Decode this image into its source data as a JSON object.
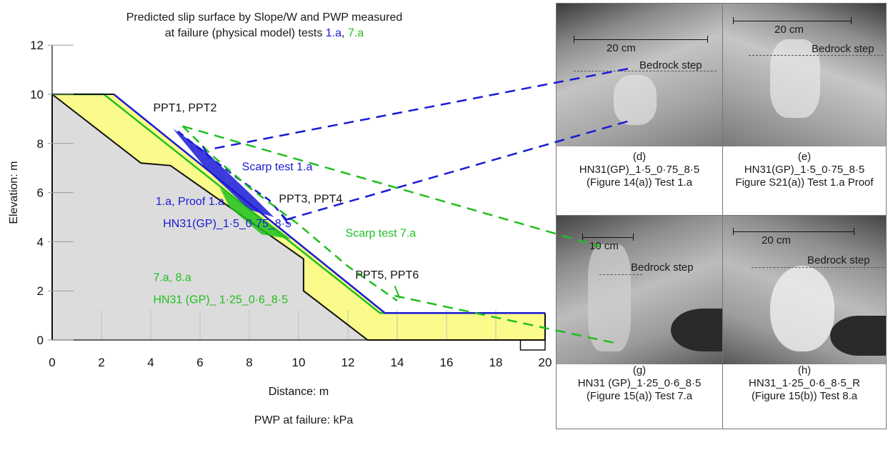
{
  "figure": {
    "title_line1": "Predicted slip surface by Slope/W and PWP measured",
    "title_line2_prefix": "at failure (physical model) tests ",
    "title_test_blue": "1.a",
    "title_sep": ", ",
    "title_test_green": "7.a",
    "bottom_label": "PWP at failure: kPa"
  },
  "colors": {
    "blue": "#1a1ad6",
    "green": "#1fbf1f",
    "soil_yellow": "#fbfb8c",
    "bedrock_grey": "#dcdcdc",
    "outline": "#111111"
  },
  "chart_data": {
    "type": "diagram",
    "xlabel": "Distance: m",
    "ylabel": "Elevation: m",
    "xlim": [
      0,
      20
    ],
    "ylim": [
      0,
      12
    ],
    "x_ticks": [
      0,
      2,
      4,
      6,
      8,
      10,
      12,
      14,
      16,
      18,
      20
    ],
    "y_ticks": [
      0,
      2,
      4,
      6,
      8,
      10,
      12
    ],
    "bedrock_outline": [
      [
        0,
        10
      ],
      [
        3.6,
        7.2
      ],
      [
        4.8,
        7.1
      ],
      [
        10.2,
        3.3
      ],
      [
        10.2,
        2.0
      ],
      [
        12.8,
        0
      ],
      [
        0,
        0
      ]
    ],
    "soil_surface_green": [
      [
        0,
        10
      ],
      [
        2.1,
        10
      ],
      [
        13.3,
        1.1
      ],
      [
        20,
        1.1
      ]
    ],
    "soil_surface_blue": [
      [
        2.5,
        10
      ],
      [
        13.5,
        1.1
      ],
      [
        20,
        1.1
      ]
    ],
    "model_bottom": [
      [
        12.8,
        0
      ],
      [
        20,
        0
      ],
      [
        20,
        1.1
      ]
    ],
    "grid_x": [
      2,
      4,
      6,
      8,
      10,
      12,
      14,
      16,
      18
    ],
    "annotations": [
      {
        "text": "PPT1, PPT2",
        "x": 4.1,
        "y": 9.3,
        "color": "black"
      },
      {
        "text": "Scarp test 1.a",
        "x": 7.7,
        "y": 6.9,
        "color": "blue"
      },
      {
        "text": "PPT3, PPT4",
        "x": 9.2,
        "y": 5.6,
        "color": "black"
      },
      {
        "text": "Scarp test 7.a",
        "x": 11.9,
        "y": 4.2,
        "color": "green"
      },
      {
        "text": "PPT5, PPT6",
        "x": 12.3,
        "y": 2.5,
        "color": "black"
      },
      {
        "text": "1.a, Proof 1.a",
        "x": 4.2,
        "y": 5.5,
        "color": "blue"
      },
      {
        "text": "HN31(GP)_1·5_0·75_8·5",
        "x": 4.5,
        "y": 4.6,
        "color": "blue"
      },
      {
        "text": "7.a, 8.a",
        "x": 4.1,
        "y": 2.4,
        "color": "green"
      },
      {
        "text": "HN31 (GP)_ 1·25_0·6_8·5",
        "x": 4.1,
        "y": 1.5,
        "color": "green"
      }
    ],
    "slip_blue": [
      [
        5.1,
        8.5
      ],
      [
        6.2,
        7.6
      ],
      [
        7.5,
        6.6
      ],
      [
        8.8,
        5.7
      ],
      [
        9.5,
        4.9
      ]
    ],
    "slip_green": [
      [
        5.3,
        8.7
      ],
      [
        6.5,
        7.5
      ],
      [
        8.0,
        6.2
      ],
      [
        10.0,
        4.7
      ],
      [
        12.0,
        3.0
      ],
      [
        14.0,
        1.6
      ]
    ]
  },
  "photos": [
    {
      "id": "d",
      "scale_label": "20 cm",
      "step_label": "Bedrock step",
      "caption_line1": "(d)",
      "caption_line2": "HN31(GP)_1·5_0·75_8·5",
      "caption_line3": "(Figure 14(a)) Test 1.a"
    },
    {
      "id": "e",
      "scale_label": "20 cm",
      "step_label": "Bedrock step",
      "caption_line1": "(e)",
      "caption_line2": "HN31(GP)_1·5_0·75_8·5",
      "caption_line3": "Figure S21(a)) Test 1.a Proof"
    },
    {
      "id": "g",
      "scale_label": "10 cm",
      "step_label": "Bedrock step",
      "caption_line1": "(g)",
      "caption_line2": "HN31 (GP)_1·25_0·6_8·5",
      "caption_line3": "(Figure 15(a)) Test 7.a"
    },
    {
      "id": "h",
      "scale_label": "20 cm",
      "step_label": "Bedrock step",
      "caption_line1": "(h)",
      "caption_line2": "HN31_1·25_0·6_8·5_R",
      "caption_line3": "(Figure 15(b)) Test 8.a"
    }
  ]
}
